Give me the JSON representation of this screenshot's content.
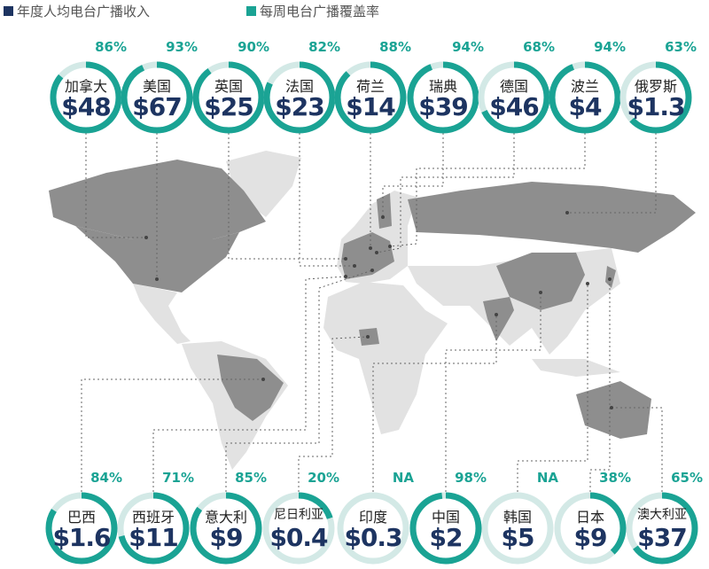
{
  "legend": {
    "revenue_label": "年度人均电台广播收入",
    "coverage_label": "每周电台广播覆盖率",
    "revenue_color": "#1d3461",
    "coverage_color": "#1aa394"
  },
  "colors": {
    "ring_track": "#d3e9e6",
    "map_light": "#e2e2e2",
    "map_dark": "#8e8e8e"
  },
  "top_countries": [
    {
      "name": "加拿大",
      "revenue": "$48",
      "coverage": "86%",
      "coverage_value": 86
    },
    {
      "name": "美国",
      "revenue": "$67",
      "coverage": "93%",
      "coverage_value": 93
    },
    {
      "name": "英国",
      "revenue": "$25",
      "coverage": "90%",
      "coverage_value": 90
    },
    {
      "name": "法国",
      "revenue": "$23",
      "coverage": "82%",
      "coverage_value": 82
    },
    {
      "name": "荷兰",
      "revenue": "$14",
      "coverage": "88%",
      "coverage_value": 88
    },
    {
      "name": "瑞典",
      "revenue": "$39",
      "coverage": "94%",
      "coverage_value": 94
    },
    {
      "name": "德国",
      "revenue": "$46",
      "coverage": "68%",
      "coverage_value": 68
    },
    {
      "name": "波兰",
      "revenue": "$4",
      "coverage": "94%",
      "coverage_value": 94
    },
    {
      "name": "俄罗斯",
      "revenue": "$1.3",
      "coverage": "63%",
      "coverage_value": 63
    }
  ],
  "bottom_countries": [
    {
      "name": "巴西",
      "revenue": "$1.6",
      "coverage": "84%",
      "coverage_value": 84
    },
    {
      "name": "西班牙",
      "revenue": "$11",
      "coverage": "71%",
      "coverage_value": 71
    },
    {
      "name": "意大利",
      "revenue": "$9",
      "coverage": "85%",
      "coverage_value": 85
    },
    {
      "name": "尼日利亚",
      "revenue": "$0.4",
      "coverage": "20%",
      "coverage_value": 20
    },
    {
      "name": "印度",
      "revenue": "$0.3",
      "coverage": "NA",
      "coverage_value": 0
    },
    {
      "name": "中国",
      "revenue": "$2",
      "coverage": "98%",
      "coverage_value": 98
    },
    {
      "name": "韩国",
      "revenue": "$5",
      "coverage": "NA",
      "coverage_value": 0
    },
    {
      "name": "日本",
      "revenue": "$9",
      "coverage": "38%",
      "coverage_value": 38
    },
    {
      "name": "澳大利亚",
      "revenue": "$37",
      "coverage": "65%",
      "coverage_value": 65
    }
  ]
}
